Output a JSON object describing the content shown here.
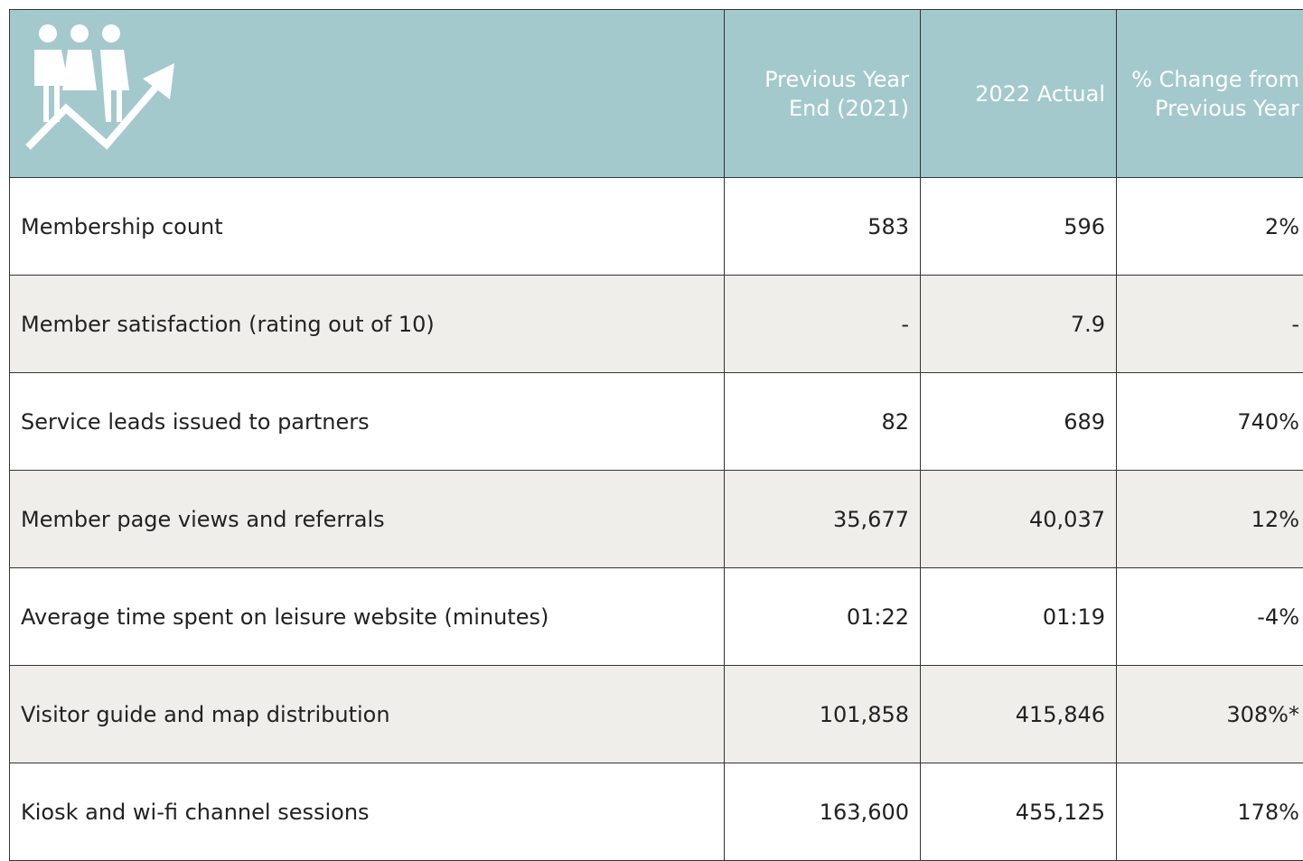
{
  "table": {
    "header": [
      "",
      "Previous Year End (2021)",
      "2022 Actual",
      "% Change from Previous Year"
    ],
    "rows": [
      [
        "Membership count",
        "583",
        "596",
        "2%"
      ],
      [
        "Member satisfaction (rating out of 10)",
        "-",
        "7.9",
        "-"
      ],
      [
        "Service leads issued to partners",
        "82",
        "689",
        "740%"
      ],
      [
        "Member page views and referrals",
        "35,677",
        "40,037",
        "12%"
      ],
      [
        "Average time spent on leisure website (minutes)",
        "01:22",
        "01:19",
        "-4%"
      ],
      [
        "Visitor guide and map distribution",
        "101,858",
        "415,846",
        "308%*"
      ],
      [
        "Kiosk and wi-fi channel sessions",
        "163,600",
        "455,125",
        "178%"
      ]
    ]
  }
}
